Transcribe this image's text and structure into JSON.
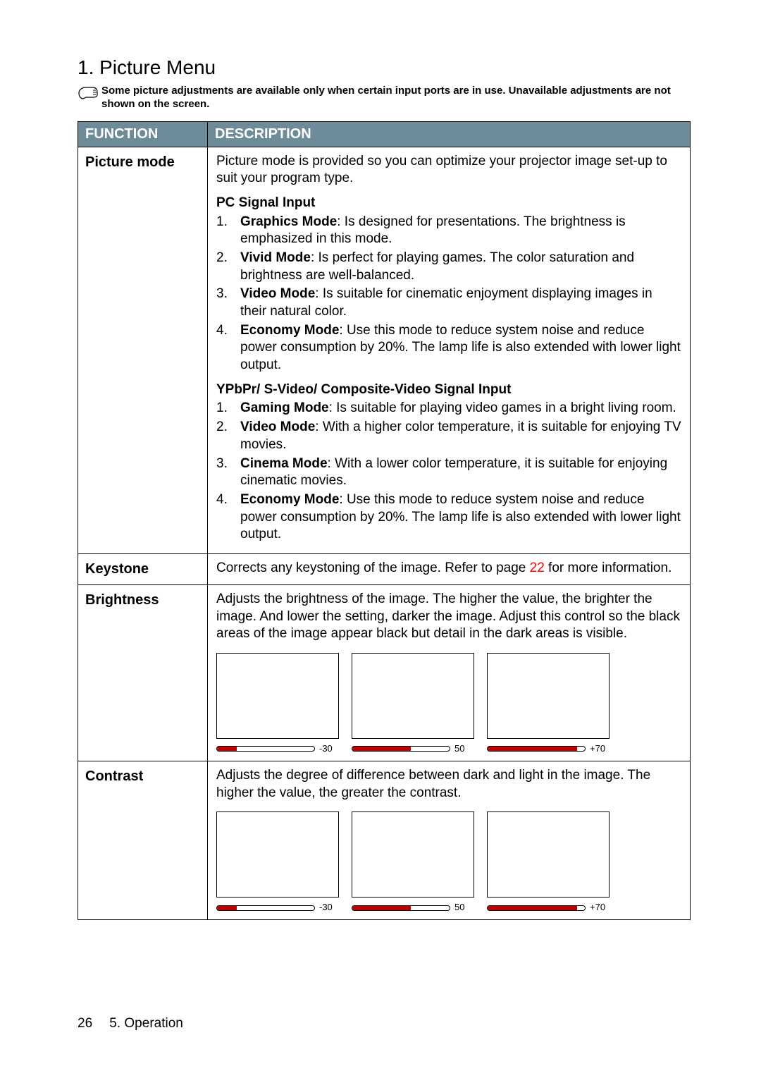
{
  "heading": "1. Picture Menu",
  "note_text": "Some picture adjustments are available only when certain input ports are in use. Unavailable adjustments are not shown on the screen.",
  "header": {
    "col1": "FUNCTION",
    "col2": "DESCRIPTION"
  },
  "table_header_bg": "#6E8B9A",
  "table_header_fg": "#ffffff",
  "table_border": "#000000",
  "slider_fill_color": "#c00000",
  "link_color": "#ff0000",
  "picture_mode": {
    "label": "Picture mode",
    "intro": "Picture mode is provided so you can optimize your projector image set-up to suit your program type.",
    "pc_title": "PC Signal Input",
    "pc_items": [
      {
        "n": "1.",
        "name": "Graphics Mode",
        "text": ": Is designed for presentations. The brightness is emphasized in this mode."
      },
      {
        "n": "2.",
        "name": "Vivid Mode",
        "text": ": Is perfect for playing games. The color saturation and brightness are well-balanced."
      },
      {
        "n": "3.",
        "name": "Video Mode",
        "text": ": Is suitable for cinematic enjoyment displaying images in their natural color."
      },
      {
        "n": "4.",
        "name": "Economy Mode",
        "text": ": Use this mode to reduce system noise and reduce power consumption by 20%. The lamp life is also extended with lower light output."
      }
    ],
    "yp_title": "YPbPr/ S-Video/ Composite-Video Signal Input",
    "yp_items": [
      {
        "n": "1.",
        "name": "Gaming Mode",
        "text": ": Is suitable for playing video games in a bright living room."
      },
      {
        "n": "2.",
        "name": "Video Mode",
        "text": ": With a higher color temperature, it is suitable for enjoying TV movies."
      },
      {
        "n": "3.",
        "name": "Cinema Mode",
        "text": ": With a lower color temperature, it is suitable for enjoying cinematic movies."
      },
      {
        "n": "4.",
        "name": "Economy Mode",
        "text": ": Use this mode to reduce system noise and reduce power consumption by 20%. The lamp life is also extended with lower light output."
      }
    ]
  },
  "keystone": {
    "label": "Keystone",
    "text_a": "Corrects any keystoning of the image. Refer to page ",
    "page_ref": "22",
    "text_b": " for more information."
  },
  "brightness": {
    "label": "Brightness",
    "text": "Adjusts the brightness of the image. The higher the value, the brighter the image. And lower the setting, darker the image. Adjust this control so the black areas of the image appear black but detail in the dark areas is visible.",
    "sliders": [
      {
        "value": "-30",
        "fill_pct": 20
      },
      {
        "value": "50",
        "fill_pct": 60
      },
      {
        "value": "+70",
        "fill_pct": 92
      }
    ]
  },
  "contrast": {
    "label": "Contrast",
    "text": "Adjusts the degree of difference between dark and light in the image. The higher the value, the greater the contrast.",
    "sliders": [
      {
        "value": "-30",
        "fill_pct": 20
      },
      {
        "value": "50",
        "fill_pct": 60
      },
      {
        "value": "+70",
        "fill_pct": 92
      }
    ]
  },
  "footer": {
    "page": "26",
    "chapter": "5. Operation"
  }
}
